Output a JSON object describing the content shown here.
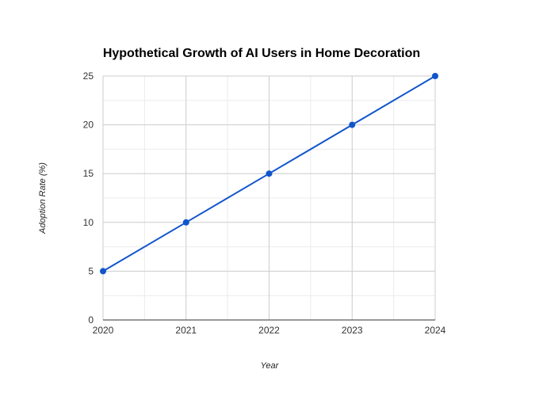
{
  "chart_data": {
    "type": "line",
    "title": "Hypothetical Growth of AI Users in Home Decoration",
    "xlabel": "Year",
    "ylabel": "Adoption Rate (%)",
    "categories": [
      "2020",
      "2021",
      "2022",
      "2023",
      "2024"
    ],
    "x": [
      2020,
      2021,
      2022,
      2023,
      2024
    ],
    "series": [
      {
        "values": [
          5,
          10,
          15,
          20,
          25
        ]
      }
    ],
    "ylim": [
      0,
      25
    ],
    "yticks": [
      "0",
      "5",
      "10",
      "15",
      "20",
      "25"
    ],
    "grid": true,
    "legend": "none",
    "colors": {
      "line": "#1155cc",
      "major_grid": "#cccccc",
      "minor_grid": "#ebebeb",
      "axis": "#333333"
    }
  }
}
